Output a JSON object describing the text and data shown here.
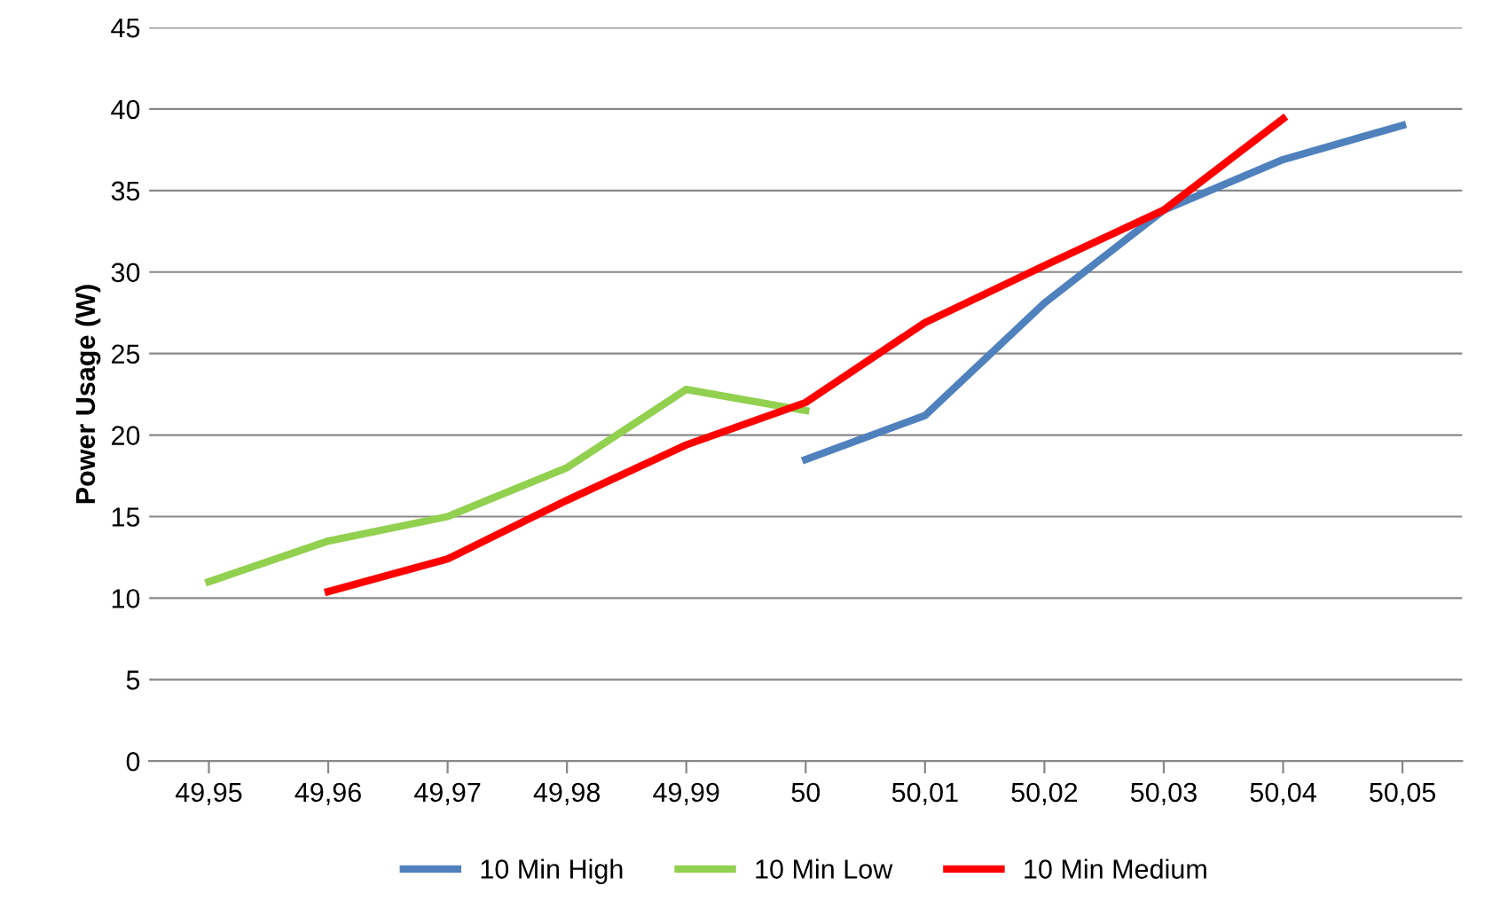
{
  "chart_data": {
    "type": "line",
    "ylabel": "Power Usage (W)",
    "categories": [
      "49,95",
      "49,96",
      "49,97",
      "49,98",
      "49,99",
      "50",
      "50,01",
      "50,02",
      "50,03",
      "50,04",
      "50,05"
    ],
    "series": [
      {
        "name": "10 Min High",
        "color": "#4f81bd",
        "values": [
          null,
          null,
          null,
          null,
          null,
          18.5,
          21.2,
          28.1,
          33.8,
          36.9,
          39
        ]
      },
      {
        "name": "10 Min Low",
        "color": "#92d050",
        "values": [
          11,
          13.5,
          15,
          18,
          22.8,
          21.5,
          null,
          null,
          null,
          null,
          null
        ]
      },
      {
        "name": "10 Min Medium",
        "color": "#ff0000",
        "values": [
          null,
          10.4,
          12.4,
          16,
          19.4,
          22,
          26.9,
          30.4,
          33.8,
          39.4,
          null
        ]
      }
    ],
    "ylim": [
      0,
      45
    ],
    "yticks": [
      0,
      5,
      10,
      15,
      20,
      25,
      30,
      35,
      40,
      45
    ],
    "grid": "y",
    "legend": "bottom"
  }
}
